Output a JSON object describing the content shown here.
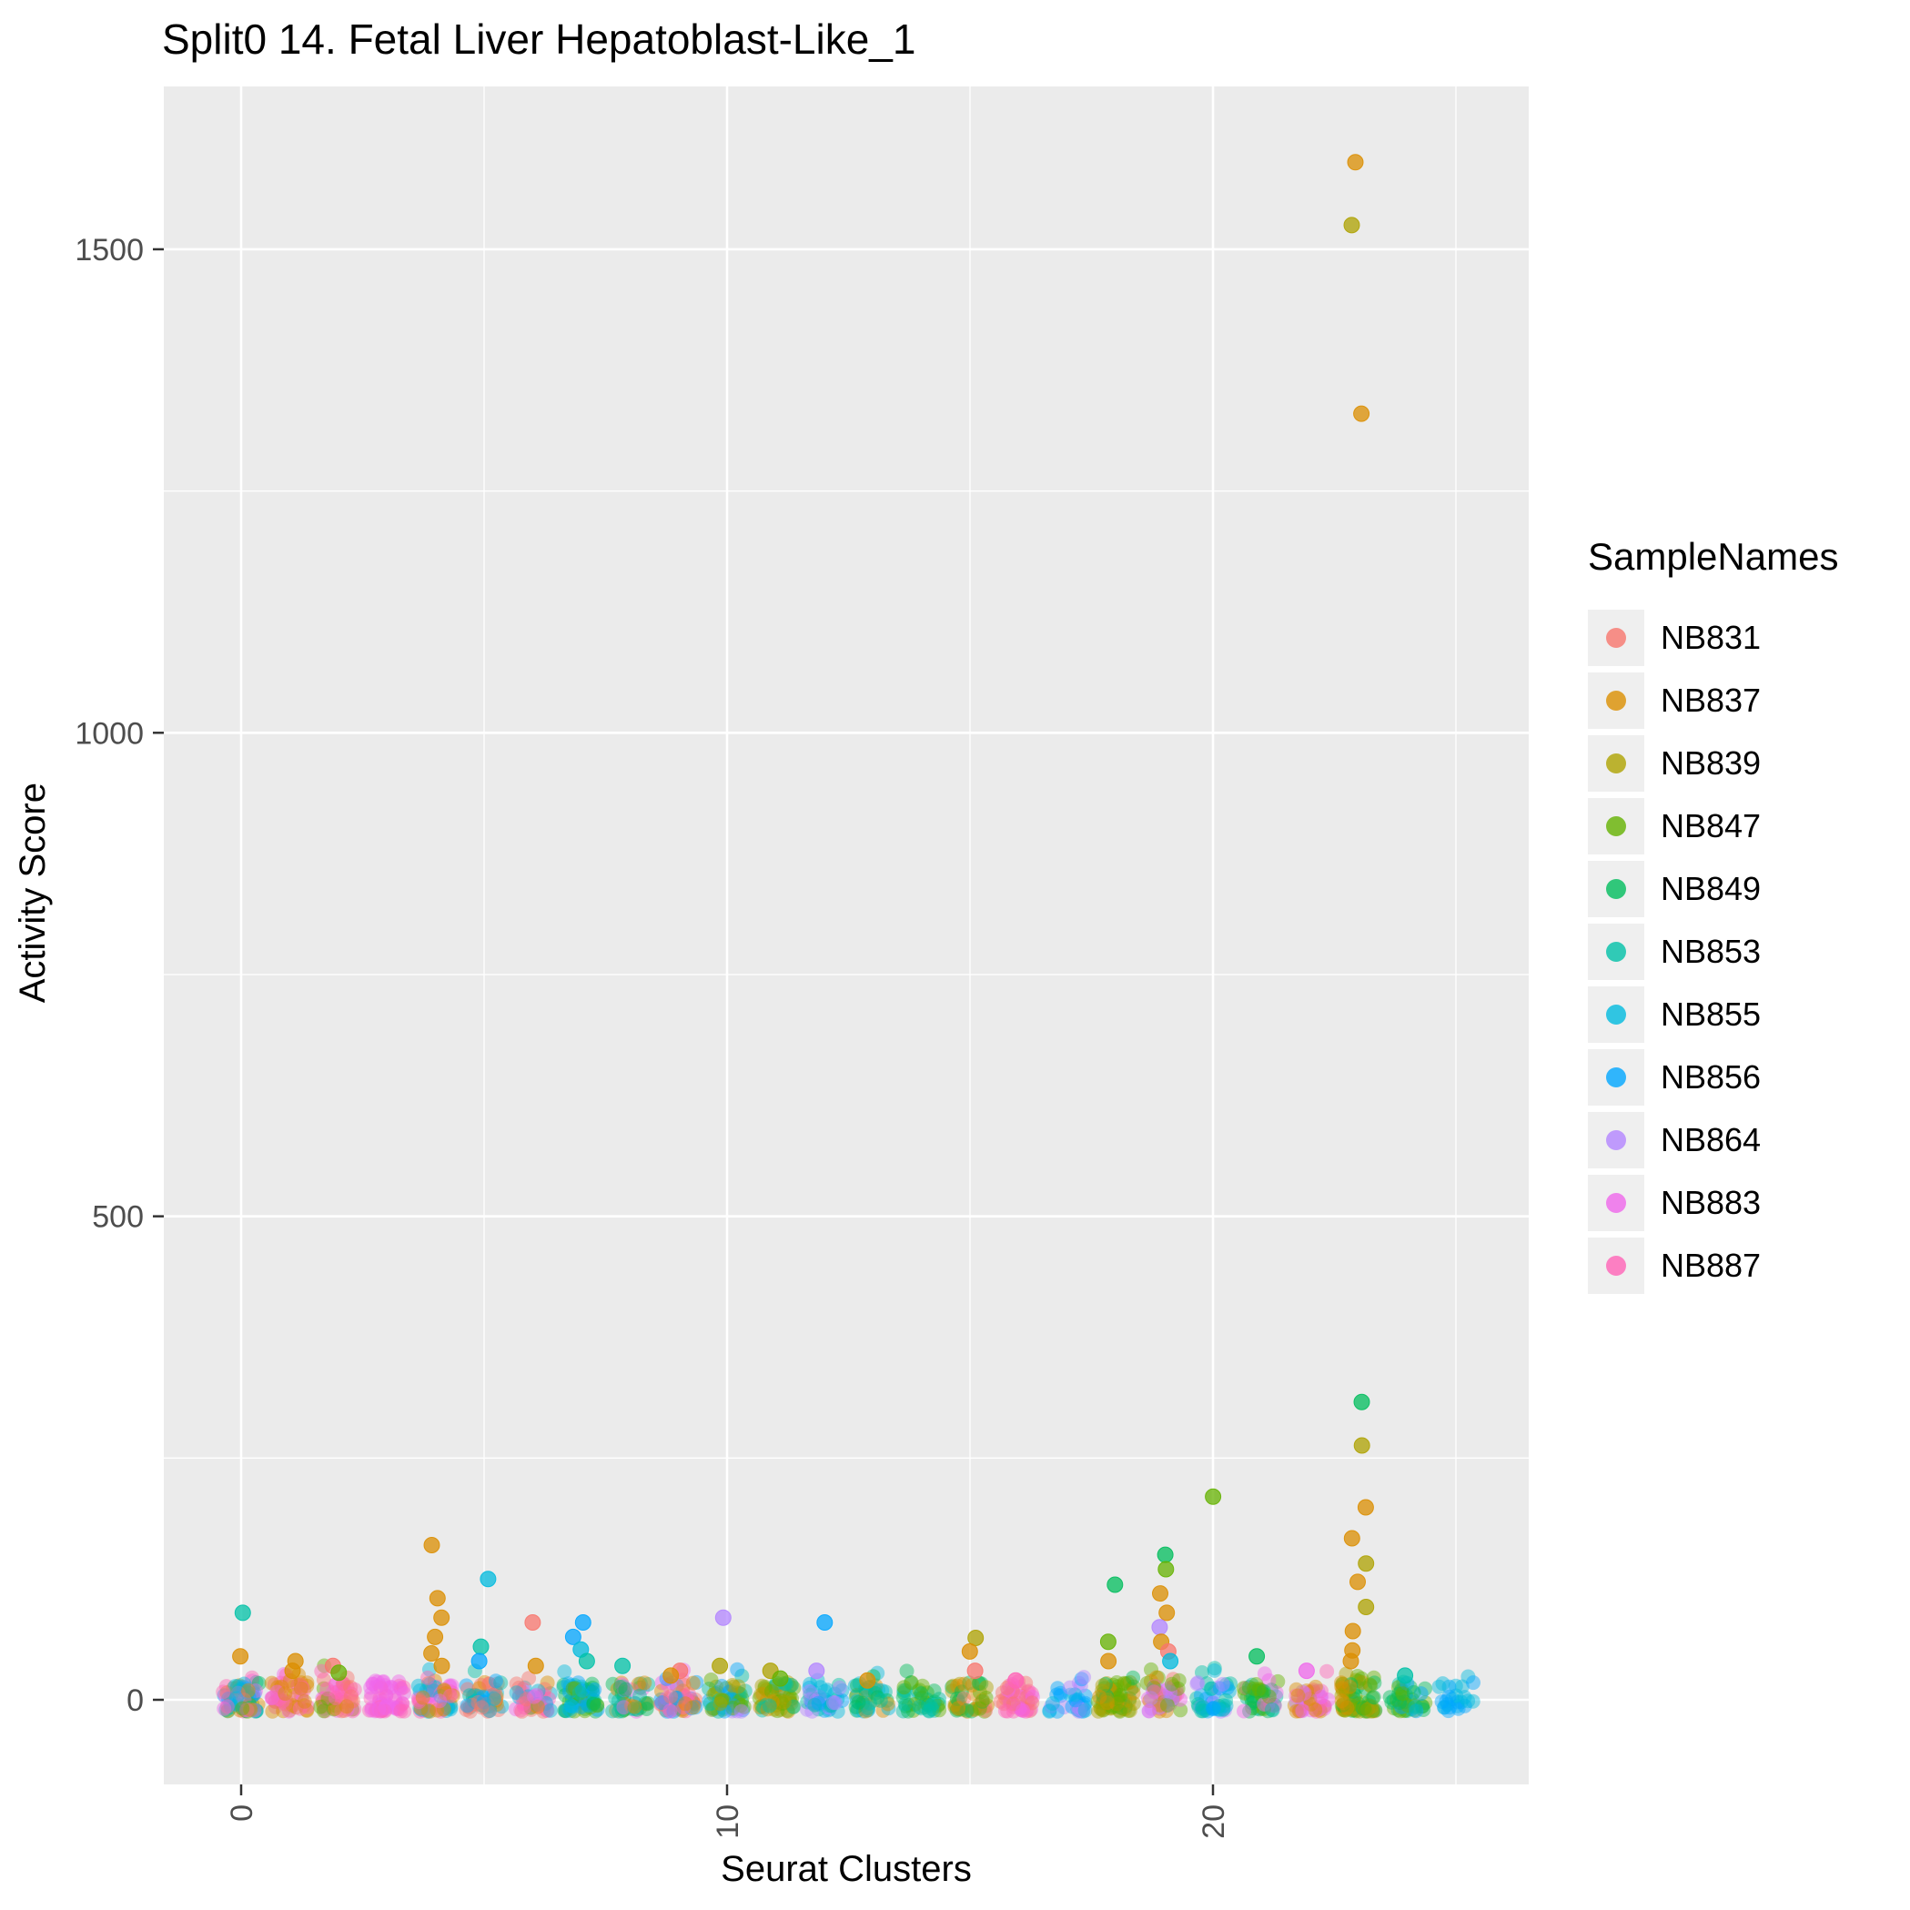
{
  "chart_data": {
    "type": "scatter",
    "title": "Split0 14. Fetal Liver Hepatoblast-Like_1",
    "xlabel": "Seurat Clusters",
    "ylabel": "Activity Score",
    "legend_title": "SampleNames",
    "x_ticks": [
      0,
      10,
      20
    ],
    "x_minor": [
      5,
      15,
      25
    ],
    "y_ticks": [
      0,
      500,
      1000,
      1500
    ],
    "y_minor": [
      250,
      750,
      1250
    ],
    "x_range": [
      -1.6,
      26.5
    ],
    "ylim": [
      -87,
      1668
    ],
    "grid": true,
    "legend_position": "right",
    "colors": {
      "panel_bg": "#EBEBEB",
      "grid": "#FFFFFF",
      "tick_label": "#4D4D4D",
      "tick_mark": "#333333"
    },
    "samples": [
      {
        "name": "NB831",
        "color": "#F8766D"
      },
      {
        "name": "NB837",
        "color": "#DB8E00"
      },
      {
        "name": "NB839",
        "color": "#AEA200"
      },
      {
        "name": "NB847",
        "color": "#64B200"
      },
      {
        "name": "NB849",
        "color": "#00BD5C"
      },
      {
        "name": "NB853",
        "color": "#00C1A7"
      },
      {
        "name": "NB855",
        "color": "#00BADE"
      },
      {
        "name": "NB856",
        "color": "#00A6FF"
      },
      {
        "name": "NB864",
        "color": "#B385FF"
      },
      {
        "name": "NB883",
        "color": "#EF67EB"
      },
      {
        "name": "NB887",
        "color": "#FF63B6"
      }
    ],
    "clusters": [
      {
        "x": 0,
        "n": 70,
        "samples": [
          "NB853",
          "NB855",
          "NB847",
          "NB837",
          "NB887",
          "NB883",
          "NB856",
          "NB849"
        ]
      },
      {
        "x": 1,
        "n": 55,
        "samples": [
          "NB837",
          "NB837",
          "NB887",
          "NB883",
          "NB831"
        ]
      },
      {
        "x": 2,
        "n": 50,
        "samples": [
          "NB837",
          "NB831",
          "NB847",
          "NB883",
          "NB887"
        ]
      },
      {
        "x": 3,
        "n": 60,
        "samples": [
          "NB883",
          "NB887",
          "NB883"
        ]
      },
      {
        "x": 4,
        "n": 60,
        "samples": [
          "NB837",
          "NB883",
          "NB855",
          "NB887"
        ]
      },
      {
        "x": 5,
        "n": 50,
        "samples": [
          "NB855",
          "NB853",
          "NB856",
          "NB837",
          "NB831"
        ]
      },
      {
        "x": 6,
        "n": 45,
        "samples": [
          "NB831",
          "NB837",
          "NB883",
          "NB887",
          "NB855"
        ]
      },
      {
        "x": 7,
        "n": 55,
        "samples": [
          "NB856",
          "NB855",
          "NB853",
          "NB847",
          "NB849"
        ]
      },
      {
        "x": 8,
        "n": 45,
        "samples": [
          "NB853",
          "NB849",
          "NB837",
          "NB883"
        ]
      },
      {
        "x": 9,
        "n": 55,
        "samples": [
          "NB831",
          "NB837",
          "NB883",
          "NB856",
          "NB887"
        ]
      },
      {
        "x": 10,
        "n": 55,
        "samples": [
          "NB864",
          "NB839",
          "NB856",
          "NB847",
          "NB853"
        ]
      },
      {
        "x": 11,
        "n": 50,
        "samples": [
          "NB839",
          "NB847",
          "NB853",
          "NB837"
        ]
      },
      {
        "x": 12,
        "n": 45,
        "samples": [
          "NB856",
          "NB864",
          "NB855",
          "NB853"
        ]
      },
      {
        "x": 13,
        "n": 40,
        "samples": [
          "NB837",
          "NB853",
          "NB849",
          "NB855"
        ]
      },
      {
        "x": 14,
        "n": 40,
        "samples": [
          "NB853",
          "NB849",
          "NB847"
        ]
      },
      {
        "x": 15,
        "n": 45,
        "samples": [
          "NB839",
          "NB837",
          "NB831",
          "NB847",
          "NB849"
        ]
      },
      {
        "x": 16,
        "n": 45,
        "samples": [
          "NB887",
          "NB883",
          "NB831"
        ]
      },
      {
        "x": 17,
        "n": 35,
        "samples": [
          "NB856",
          "NB864",
          "NB855"
        ]
      },
      {
        "x": 18,
        "n": 65,
        "samples": [
          "NB847",
          "NB847",
          "NB849",
          "NB837",
          "NB839"
        ]
      },
      {
        "x": 19,
        "n": 55,
        "samples": [
          "NB883",
          "NB887",
          "NB837",
          "NB847",
          "NB864",
          "NB831"
        ]
      },
      {
        "x": 20,
        "n": 45,
        "samples": [
          "NB856",
          "NB855",
          "NB853",
          "NB864"
        ]
      },
      {
        "x": 21,
        "n": 45,
        "samples": [
          "NB847",
          "NB849",
          "NB883",
          "NB853"
        ]
      },
      {
        "x": 22,
        "n": 45,
        "samples": [
          "NB883",
          "NB887",
          "NB837",
          "NB864"
        ]
      },
      {
        "x": 23,
        "n": 70,
        "samples": [
          "NB847",
          "NB847",
          "NB849",
          "NB839",
          "NB837"
        ]
      },
      {
        "x": 24,
        "n": 40,
        "samples": [
          "NB853",
          "NB847",
          "NB856",
          "NB849"
        ]
      },
      {
        "x": 25,
        "n": 25,
        "samples": [
          "NB856",
          "NB855"
        ]
      }
    ],
    "outliers": [
      {
        "x": 0,
        "y": 90,
        "s": "NB853"
      },
      {
        "x": 0,
        "y": 45,
        "s": "NB837"
      },
      {
        "x": 1,
        "y": 40,
        "s": "NB837"
      },
      {
        "x": 1,
        "y": 30,
        "s": "NB837"
      },
      {
        "x": 2,
        "y": 35,
        "s": "NB831"
      },
      {
        "x": 2,
        "y": 28,
        "s": "NB847"
      },
      {
        "x": 4,
        "y": 160,
        "s": "NB837"
      },
      {
        "x": 4,
        "y": 105,
        "s": "NB837"
      },
      {
        "x": 4,
        "y": 85,
        "s": "NB837"
      },
      {
        "x": 4,
        "y": 65,
        "s": "NB837"
      },
      {
        "x": 4,
        "y": 48,
        "s": "NB837"
      },
      {
        "x": 4,
        "y": 35,
        "s": "NB837"
      },
      {
        "x": 5,
        "y": 125,
        "s": "NB855"
      },
      {
        "x": 5,
        "y": 55,
        "s": "NB853"
      },
      {
        "x": 5,
        "y": 40,
        "s": "NB856"
      },
      {
        "x": 6,
        "y": 80,
        "s": "NB831"
      },
      {
        "x": 6,
        "y": 35,
        "s": "NB837"
      },
      {
        "x": 7,
        "y": 80,
        "s": "NB856"
      },
      {
        "x": 7,
        "y": 65,
        "s": "NB856"
      },
      {
        "x": 7,
        "y": 52,
        "s": "NB855"
      },
      {
        "x": 7,
        "y": 40,
        "s": "NB853"
      },
      {
        "x": 8,
        "y": 35,
        "s": "NB853"
      },
      {
        "x": 9,
        "y": 30,
        "s": "NB831"
      },
      {
        "x": 9,
        "y": 25,
        "s": "NB837"
      },
      {
        "x": 10,
        "y": 85,
        "s": "NB864"
      },
      {
        "x": 10,
        "y": 35,
        "s": "NB839"
      },
      {
        "x": 11,
        "y": 30,
        "s": "NB839"
      },
      {
        "x": 11,
        "y": 22,
        "s": "NB847"
      },
      {
        "x": 12,
        "y": 80,
        "s": "NB856"
      },
      {
        "x": 12,
        "y": 30,
        "s": "NB864"
      },
      {
        "x": 13,
        "y": 20,
        "s": "NB837"
      },
      {
        "x": 15,
        "y": 64,
        "s": "NB839"
      },
      {
        "x": 15,
        "y": 50,
        "s": "NB837"
      },
      {
        "x": 15,
        "y": 30,
        "s": "NB831"
      },
      {
        "x": 16,
        "y": 20,
        "s": "NB887"
      },
      {
        "x": 18,
        "y": 119,
        "s": "NB849"
      },
      {
        "x": 18,
        "y": 60,
        "s": "NB847"
      },
      {
        "x": 18,
        "y": 40,
        "s": "NB837"
      },
      {
        "x": 19,
        "y": 150,
        "s": "NB849"
      },
      {
        "x": 19,
        "y": 135,
        "s": "NB847"
      },
      {
        "x": 19,
        "y": 110,
        "s": "NB837"
      },
      {
        "x": 19,
        "y": 90,
        "s": "NB837"
      },
      {
        "x": 19,
        "y": 75,
        "s": "NB864"
      },
      {
        "x": 19,
        "y": 60,
        "s": "NB837"
      },
      {
        "x": 19,
        "y": 50,
        "s": "NB831"
      },
      {
        "x": 19,
        "y": 40,
        "s": "NB855"
      },
      {
        "x": 20,
        "y": 210,
        "s": "NB847"
      },
      {
        "x": 21,
        "y": 45,
        "s": "NB849"
      },
      {
        "x": 22,
        "y": 30,
        "s": "NB883"
      },
      {
        "x": 23,
        "y": 1590,
        "s": "NB837"
      },
      {
        "x": 23,
        "y": 1525,
        "s": "NB839"
      },
      {
        "x": 23,
        "y": 1330,
        "s": "NB837"
      },
      {
        "x": 23,
        "y": 308,
        "s": "NB849"
      },
      {
        "x": 23,
        "y": 263,
        "s": "NB839"
      },
      {
        "x": 23,
        "y": 199,
        "s": "NB837"
      },
      {
        "x": 23,
        "y": 167,
        "s": "NB837"
      },
      {
        "x": 23,
        "y": 141,
        "s": "NB839"
      },
      {
        "x": 23,
        "y": 122,
        "s": "NB837"
      },
      {
        "x": 23,
        "y": 96,
        "s": "NB839"
      },
      {
        "x": 23,
        "y": 71,
        "s": "NB837"
      },
      {
        "x": 23,
        "y": 51,
        "s": "NB837"
      },
      {
        "x": 23,
        "y": 40,
        "s": "NB837"
      },
      {
        "x": 24,
        "y": 25,
        "s": "NB853"
      }
    ]
  }
}
